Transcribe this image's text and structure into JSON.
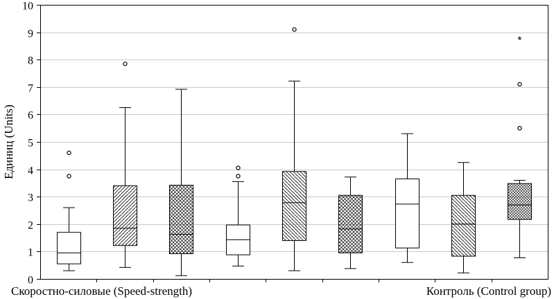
{
  "chart_data": {
    "type": "boxplot",
    "ylabel": "Единиц (Units)",
    "ylim": [
      0,
      10
    ],
    "yticks": [
      0,
      1,
      2,
      3,
      4,
      5,
      6,
      7,
      8,
      9,
      10
    ],
    "grid": true,
    "group_labels": [
      {
        "text": "Скоростно-силовые (Speed-strength)",
        "align": "left"
      },
      {
        "text": "Контроль (Control group)",
        "align": "right"
      }
    ],
    "boxes": [
      {
        "name": "box-1",
        "whisker_low": 0.3,
        "q1": 0.55,
        "median": 0.95,
        "q3": 1.7,
        "whisker_high": 2.6,
        "pattern": "none",
        "outliers": [
          3.75,
          4.6
        ],
        "extremes": []
      },
      {
        "name": "box-2",
        "whisker_low": 0.42,
        "q1": 1.22,
        "median": 1.85,
        "q3": 3.4,
        "whisker_high": 6.25,
        "pattern": "diag-right",
        "outliers": [
          7.85
        ],
        "extremes": []
      },
      {
        "name": "box-3",
        "whisker_low": 0.12,
        "q1": 0.92,
        "median": 1.63,
        "q3": 3.42,
        "whisker_high": 6.92,
        "pattern": "cross",
        "outliers": [],
        "extremes": []
      },
      {
        "name": "box-4",
        "whisker_low": 0.47,
        "q1": 0.88,
        "median": 1.43,
        "q3": 1.97,
        "whisker_high": 3.55,
        "pattern": "none",
        "outliers": [
          3.75,
          4.05
        ],
        "extremes": []
      },
      {
        "name": "box-5",
        "whisker_low": 0.3,
        "q1": 1.4,
        "median": 2.78,
        "q3": 3.92,
        "whisker_high": 7.22,
        "pattern": "diag-left",
        "outliers": [
          9.1
        ],
        "extremes": []
      },
      {
        "name": "box-6",
        "whisker_low": 0.38,
        "q1": 0.95,
        "median": 1.82,
        "q3": 3.05,
        "whisker_high": 3.72,
        "pattern": "cross",
        "outliers": [],
        "extremes": []
      },
      {
        "name": "box-7",
        "whisker_low": 0.6,
        "q1": 1.13,
        "median": 2.73,
        "q3": 3.65,
        "whisker_high": 5.3,
        "pattern": "none",
        "outliers": [],
        "extremes": []
      },
      {
        "name": "box-8",
        "whisker_low": 0.22,
        "q1": 0.83,
        "median": 2.0,
        "q3": 3.05,
        "whisker_high": 4.25,
        "pattern": "diag-left",
        "outliers": [],
        "extremes": []
      },
      {
        "name": "box-9",
        "whisker_low": 0.77,
        "q1": 2.17,
        "median": 2.7,
        "q3": 3.48,
        "whisker_high": 3.6,
        "pattern": "cross-fine",
        "outliers": [
          5.5,
          7.1
        ],
        "extremes": [
          8.75
        ]
      }
    ],
    "extreme_marker": "*"
  }
}
